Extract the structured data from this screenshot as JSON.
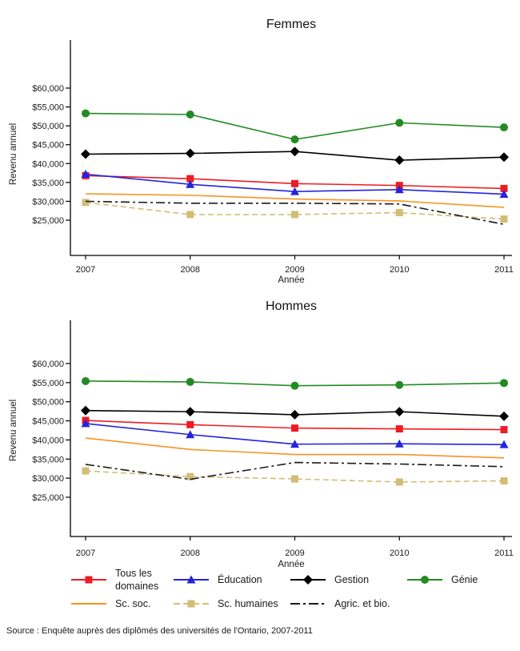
{
  "titles": {
    "femmes": "Femmes",
    "hommes": "Hommes"
  },
  "source": "Source : Enquête auprès des diplômés des universités de l'Ontario, 2007-2011",
  "colors": {
    "tous": "#ed1c24",
    "education": "#2424dd",
    "gestion": "#000000",
    "genie": "#228b22",
    "scsoc": "#f79420",
    "schum": "#d2bd76",
    "agric": "#1a1a1a"
  },
  "legend": {
    "rows": [
      {
        "items": [
          {
            "id": "tous",
            "label": "Tous les domaines"
          },
          {
            "id": "education",
            "label": "Éducation"
          },
          {
            "id": "gestion",
            "label": "Gestion"
          },
          {
            "id": "genie",
            "label": "Génie"
          }
        ]
      },
      {
        "items": [
          {
            "id": "scsoc",
            "label": "Sc. soc."
          },
          {
            "id": "schum",
            "label": "Sc. humaines"
          },
          {
            "id": "agric",
            "label": "Agric. et bio."
          }
        ]
      }
    ]
  },
  "chart_data": [
    {
      "type": "line",
      "title": "Femmes",
      "xlabel": "Année",
      "ylabel": "Revenu annuel",
      "x": [
        "2007",
        "2008",
        "2009",
        "2010",
        "2011"
      ],
      "ylim": [
        15000,
        73000
      ],
      "grid": false,
      "y_ticks": [
        {
          "value": 60000,
          "label": "$60,000"
        },
        {
          "value": 55000,
          "label": "$55,000"
        },
        {
          "value": 50000,
          "label": "$50,000"
        },
        {
          "value": 45000,
          "label": "$45,000"
        },
        {
          "value": 40000,
          "label": "$40,000"
        },
        {
          "value": 35000,
          "label": "$35,000"
        },
        {
          "value": 30000,
          "label": "$30,000"
        },
        {
          "value": 25000,
          "label": "$25,000"
        }
      ],
      "series": [
        {
          "id": "tous",
          "name": "Tous les domaines",
          "color": "#ed1c24",
          "marker": "square",
          "dash": "solid",
          "values": [
            36800,
            36000,
            34700,
            34200,
            33400
          ]
        },
        {
          "id": "education",
          "name": "Éducation",
          "color": "#2424dd",
          "marker": "triangle",
          "dash": "solid",
          "values": [
            37200,
            34500,
            32600,
            33100,
            31900
          ]
        },
        {
          "id": "gestion",
          "name": "Gestion",
          "color": "#000000",
          "marker": "diamond",
          "dash": "solid",
          "values": [
            42500,
            42700,
            43200,
            40900,
            41700
          ]
        },
        {
          "id": "genie",
          "name": "Génie",
          "color": "#228b22",
          "marker": "circle",
          "dash": "solid",
          "values": [
            53300,
            53000,
            46400,
            50800,
            49600
          ]
        },
        {
          "id": "scsoc",
          "name": "Sc. soc.",
          "color": "#f79420",
          "marker": "none",
          "dash": "solid",
          "values": [
            32000,
            31600,
            30600,
            30100,
            28400
          ]
        },
        {
          "id": "schum",
          "name": "Sc. humaines",
          "color": "#d2bd76",
          "marker": "square",
          "dash": "dashed",
          "values": [
            29700,
            26500,
            26500,
            27000,
            25300
          ]
        },
        {
          "id": "agric",
          "name": "Agric. et bio.",
          "color": "#1a1a1a",
          "marker": "none",
          "dash": "dashdot",
          "values": [
            30000,
            29500,
            29500,
            29300,
            23900
          ]
        }
      ]
    },
    {
      "type": "line",
      "title": "Hommes",
      "xlabel": "Année",
      "ylabel": "Revenu annuel",
      "x": [
        "2007",
        "2008",
        "2009",
        "2010",
        "2011"
      ],
      "ylim": [
        15000,
        73000
      ],
      "grid": false,
      "y_ticks": [
        {
          "value": 60000,
          "label": "$60,000"
        },
        {
          "value": 55000,
          "label": "$55,000"
        },
        {
          "value": 50000,
          "label": "$50,000"
        },
        {
          "value": 45000,
          "label": "$45,000"
        },
        {
          "value": 40000,
          "label": "$40,000"
        },
        {
          "value": 35000,
          "label": "$35,000"
        },
        {
          "value": 30000,
          "label": "$30,000"
        },
        {
          "value": 25000,
          "label": "$25,000"
        }
      ],
      "series": [
        {
          "id": "tous",
          "name": "Tous les domaines",
          "color": "#ed1c24",
          "marker": "square",
          "dash": "solid",
          "values": [
            45100,
            44000,
            43100,
            42900,
            42700
          ]
        },
        {
          "id": "education",
          "name": "Éducation",
          "color": "#2424dd",
          "marker": "triangle",
          "dash": "solid",
          "values": [
            44300,
            41400,
            38900,
            39000,
            38800
          ]
        },
        {
          "id": "gestion",
          "name": "Gestion",
          "color": "#000000",
          "marker": "diamond",
          "dash": "solid",
          "values": [
            47700,
            47400,
            46600,
            47400,
            46200
          ]
        },
        {
          "id": "genie",
          "name": "Génie",
          "color": "#228b22",
          "marker": "circle",
          "dash": "solid",
          "values": [
            55400,
            55200,
            54200,
            54400,
            54900
          ]
        },
        {
          "id": "scsoc",
          "name": "Sc. soc.",
          "color": "#f79420",
          "marker": "none",
          "dash": "solid",
          "values": [
            40500,
            37500,
            36200,
            36200,
            35300
          ]
        },
        {
          "id": "schum",
          "name": "Sc. humaines",
          "color": "#d2bd76",
          "marker": "square",
          "dash": "dashed",
          "values": [
            31900,
            30400,
            29800,
            29000,
            29300
          ]
        },
        {
          "id": "agric",
          "name": "Agric. et bio.",
          "color": "#1a1a1a",
          "marker": "none",
          "dash": "dashdot",
          "values": [
            33600,
            29700,
            34100,
            33700,
            33000
          ]
        }
      ]
    }
  ]
}
